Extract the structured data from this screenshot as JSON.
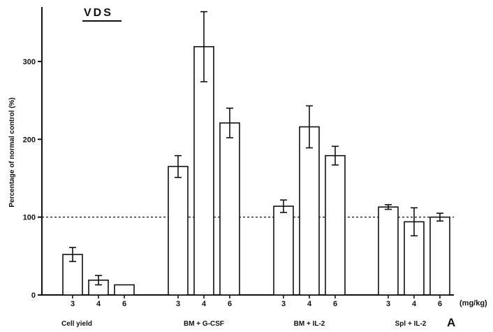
{
  "chart_data": {
    "type": "bar",
    "title": "VDS",
    "ylabel": "Percentage of normal control (%)",
    "xunit": "(mg/kg)",
    "panel_label": "A",
    "ylim": [
      0,
      370
    ],
    "yticks": [
      0,
      100,
      200,
      300
    ],
    "reference_line": 100,
    "grid": false,
    "groups": [
      {
        "name": "Cell yield",
        "doses": [
          "3",
          "4",
          "6"
        ],
        "values": [
          52,
          19,
          13
        ],
        "errors": [
          9,
          6,
          0
        ]
      },
      {
        "name": "BM + G-CSF",
        "doses": [
          "3",
          "4",
          "6"
        ],
        "values": [
          165,
          319,
          221
        ],
        "errors": [
          14,
          45,
          19
        ]
      },
      {
        "name": "BM + IL-2",
        "doses": [
          "3",
          "4",
          "6"
        ],
        "values": [
          114,
          216,
          179
        ],
        "errors": [
          8,
          27,
          12
        ]
      },
      {
        "name": "Spl + IL-2",
        "doses": [
          "3",
          "4",
          "6"
        ],
        "values": [
          113,
          94,
          100
        ],
        "errors": [
          3,
          18,
          5
        ]
      }
    ]
  }
}
